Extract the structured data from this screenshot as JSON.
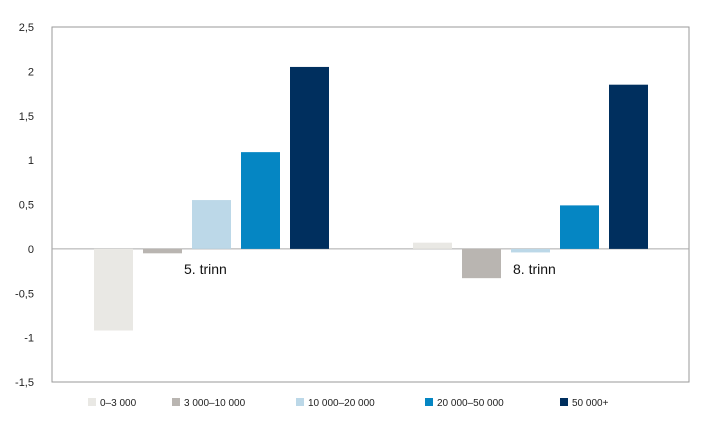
{
  "chart_data": {
    "type": "bar",
    "categories": [
      "5. trinn",
      "8. trinn"
    ],
    "series": [
      {
        "name": "0–3 000",
        "values": [
          -0.92,
          0.07
        ],
        "color": "#e9e8e4"
      },
      {
        "name": "3 000–10 000",
        "values": [
          -0.05,
          -0.33
        ],
        "color": "#b9b5b1"
      },
      {
        "name": "10 000–20 000",
        "values": [
          0.55,
          -0.04
        ],
        "color": "#bcd8e8"
      },
      {
        "name": "20 000–50 000",
        "values": [
          1.09,
          0.49
        ],
        "color": "#0586c3"
      },
      {
        "name": "50 000+",
        "values": [
          2.05,
          1.85
        ],
        "color": "#002f5e"
      }
    ],
    "yticks": [
      "2,5",
      "2",
      "1,5",
      "1",
      "0,5",
      "0",
      "-0,5",
      "-1",
      "-1,5"
    ],
    "ylim": [
      -1.5,
      2.5
    ],
    "grid": false,
    "legend": "bottom"
  }
}
